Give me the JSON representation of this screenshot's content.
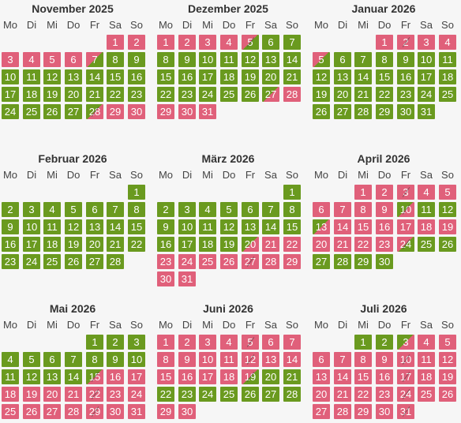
{
  "weekdays": [
    "Mo",
    "Di",
    "Mi",
    "Do",
    "Fr",
    "Sa",
    "So"
  ],
  "colors": {
    "available": "#6a9a1f",
    "booked": "#e0607a"
  },
  "months": [
    {
      "title": "November 2025",
      "offset": 5,
      "days": [
        "r",
        "r",
        "r",
        "r",
        "r",
        "r",
        "rg",
        "g",
        "g",
        "g",
        "g",
        "g",
        "g",
        "g",
        "g",
        "g",
        "g",
        "g",
        "g",
        "g",
        "g",
        "g",
        "g",
        "g",
        "g",
        "g",
        "g",
        "gr",
        "r",
        "r"
      ]
    },
    {
      "title": "Dezember 2025",
      "offset": 0,
      "days": [
        "r",
        "r",
        "r",
        "r",
        "rg",
        "g",
        "g",
        "g",
        "g",
        "g",
        "g",
        "g",
        "g",
        "g",
        "g",
        "g",
        "g",
        "g",
        "g",
        "g",
        "g",
        "g",
        "g",
        "g",
        "g",
        "g",
        "gr",
        "r",
        "r",
        "r",
        "r"
      ]
    },
    {
      "title": "Januar 2026",
      "offset": 3,
      "days": [
        "r",
        "r",
        "r",
        "r",
        "rg",
        "g",
        "g",
        "g",
        "g",
        "g",
        "g",
        "g",
        "g",
        "g",
        "g",
        "g",
        "g",
        "g",
        "g",
        "g",
        "g",
        "g",
        "g",
        "g",
        "g",
        "g",
        "g",
        "g",
        "g",
        "g",
        "g"
      ]
    },
    {
      "title": "Februar 2026",
      "offset": 6,
      "days": [
        "g",
        "g",
        "g",
        "g",
        "g",
        "g",
        "g",
        "g",
        "g",
        "g",
        "g",
        "g",
        "g",
        "g",
        "g",
        "g",
        "g",
        "g",
        "g",
        "g",
        "g",
        "g",
        "g",
        "g",
        "g",
        "g",
        "g",
        "g"
      ]
    },
    {
      "title": "März 2026",
      "offset": 6,
      "days": [
        "g",
        "g",
        "g",
        "g",
        "g",
        "g",
        "g",
        "g",
        "g",
        "g",
        "g",
        "g",
        "g",
        "g",
        "g",
        "g",
        "g",
        "g",
        "g",
        "gr",
        "r",
        "r",
        "r",
        "r",
        "r",
        "r",
        "r",
        "r",
        "r",
        "r",
        "r"
      ]
    },
    {
      "title": "April 2026",
      "offset": 2,
      "days": [
        "r",
        "r",
        "r",
        "r",
        "r",
        "r",
        "r",
        "r",
        "r",
        "gr",
        "g",
        "g",
        "gr",
        "r",
        "r",
        "r",
        "r",
        "r",
        "r",
        "r",
        "r",
        "r",
        "r",
        "rg",
        "g",
        "g",
        "g",
        "g",
        "g",
        "g"
      ]
    },
    {
      "title": "Mai 2026",
      "offset": 4,
      "days": [
        "g",
        "g",
        "g",
        "g",
        "g",
        "g",
        "g",
        "g",
        "g",
        "g",
        "g",
        "g",
        "g",
        "g",
        "gr",
        "r",
        "r",
        "r",
        "r",
        "r",
        "r",
        "r",
        "r",
        "r",
        "r",
        "r",
        "r",
        "r",
        "r",
        "r",
        "r"
      ]
    },
    {
      "title": "Juni 2026",
      "offset": 0,
      "days": [
        "r",
        "r",
        "r",
        "r",
        "r",
        "r",
        "r",
        "r",
        "r",
        "r",
        "r",
        "r",
        "r",
        "r",
        "r",
        "r",
        "r",
        "r",
        "rg",
        "g",
        "g",
        "g",
        "g",
        "g",
        "g",
        "g",
        "g",
        "g",
        "r",
        "r"
      ]
    },
    {
      "title": "Juli 2026",
      "offset": 2,
      "days": [
        "g",
        "g",
        "gr",
        "r",
        "r",
        "r",
        "r",
        "r",
        "r",
        "r",
        "r",
        "r",
        "r",
        "r",
        "r",
        "r",
        "r",
        "r",
        "r",
        "r",
        "r",
        "r",
        "r",
        "r",
        "r",
        "r",
        "r",
        "r",
        "r",
        "r",
        "r"
      ]
    }
  ],
  "slashes": {
    "0": [
      28
    ],
    "1": [
      5
    ],
    "2": [
      2
    ],
    "4": [
      27
    ],
    "5": [
      3,
      10,
      24
    ],
    "6": [
      15,
      22,
      29
    ],
    "7": [
      5,
      12,
      19
    ],
    "8": [
      10,
      17,
      24,
      31
    ]
  }
}
